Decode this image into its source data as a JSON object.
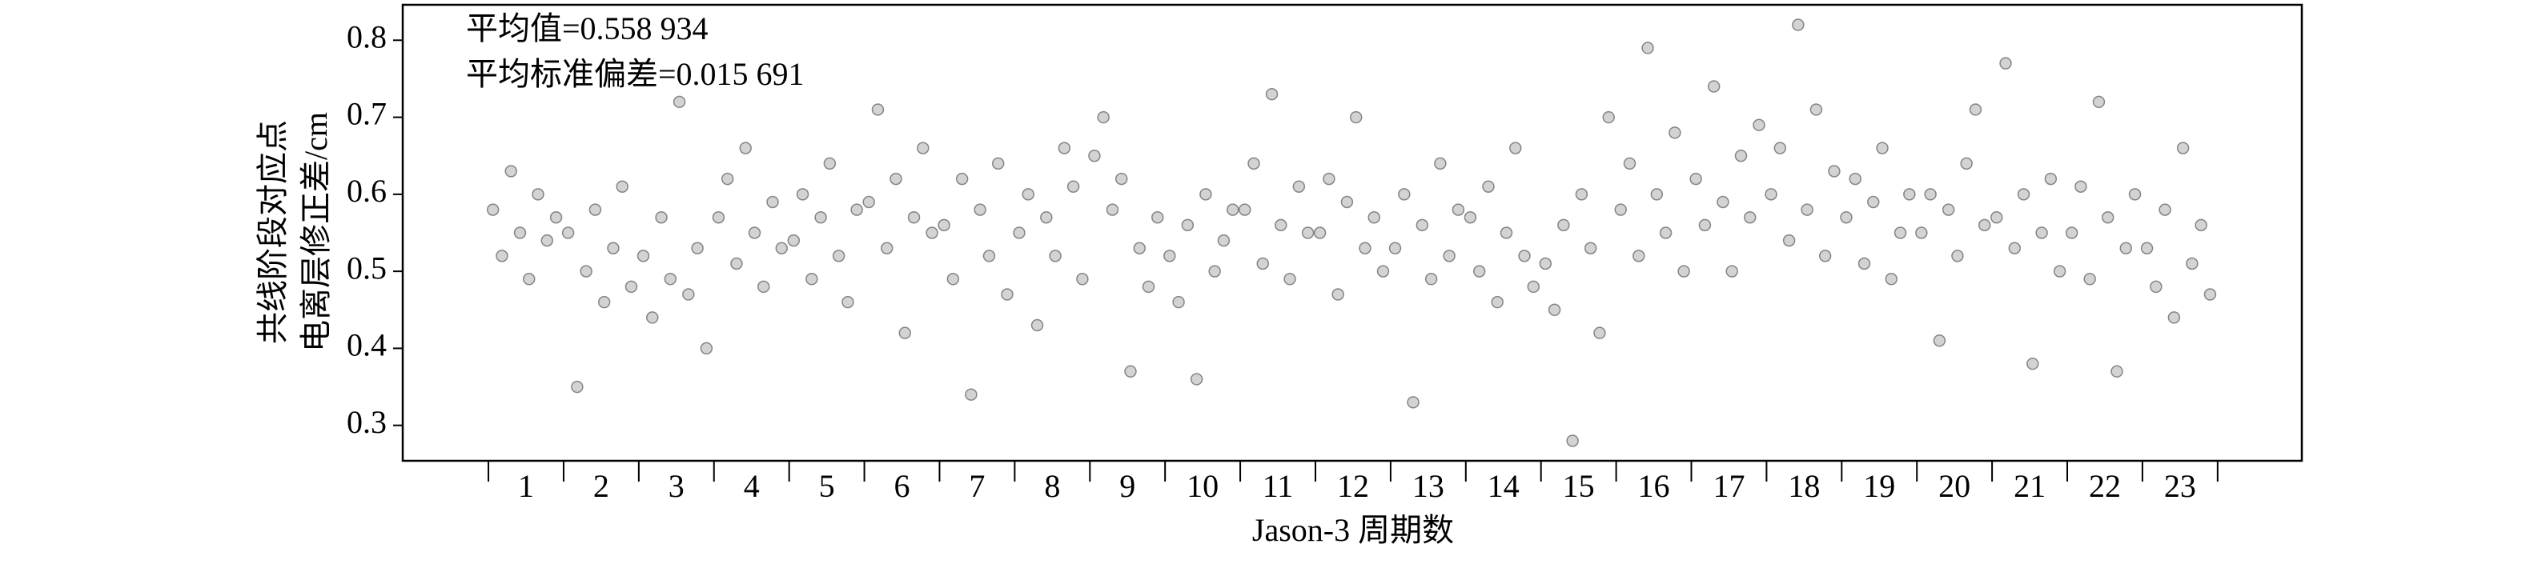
{
  "chart_data": {
    "type": "scatter",
    "annotations": [
      "平均值=0.558 934",
      "平均标准偏差=0.015 691"
    ],
    "ylabel": [
      "共线阶段对应点",
      "电离层修正差/cm"
    ],
    "xlabel": "Jason-3 周期数",
    "color": "#808080",
    "xlim": [
      -1.14,
      24.12
    ],
    "ylim": [
      0.254,
      0.846
    ],
    "yticks": [
      0.3,
      0.4,
      0.5,
      0.6,
      0.7,
      0.8
    ],
    "x_tick_marks": [
      0,
      1,
      2,
      3,
      4,
      5,
      6,
      7,
      8,
      9,
      10,
      11,
      12,
      13,
      14,
      15,
      16,
      17,
      18,
      19,
      20,
      21,
      22,
      23
    ],
    "xticks": [
      {
        "value": 0.5,
        "label": "1"
      },
      {
        "value": 1.5,
        "label": "2"
      },
      {
        "value": 2.5,
        "label": "3"
      },
      {
        "value": 3.5,
        "label": "4"
      },
      {
        "value": 4.5,
        "label": "5"
      },
      {
        "value": 5.5,
        "label": "6"
      },
      {
        "value": 6.5,
        "label": "7"
      },
      {
        "value": 7.5,
        "label": "8"
      },
      {
        "value": 8.5,
        "label": "9"
      },
      {
        "value": 9.5,
        "label": "10"
      },
      {
        "value": 10.5,
        "label": "11"
      },
      {
        "value": 11.5,
        "label": "12"
      },
      {
        "value": 12.5,
        "label": "13"
      },
      {
        "value": 13.5,
        "label": "14"
      },
      {
        "value": 14.5,
        "label": "15"
      },
      {
        "value": 15.5,
        "label": "16"
      },
      {
        "value": 16.5,
        "label": "17"
      },
      {
        "value": 17.5,
        "label": "18"
      },
      {
        "value": 18.5,
        "label": "19"
      },
      {
        "value": 19.5,
        "label": "20"
      },
      {
        "value": 20.5,
        "label": "21"
      },
      {
        "value": 21.5,
        "label": "22"
      },
      {
        "value": 22.5,
        "label": "23"
      }
    ],
    "x": [
      0.06,
      0.18,
      0.3,
      0.42,
      0.54,
      0.66,
      0.78,
      0.9,
      1.06,
      1.18,
      1.3,
      1.42,
      1.54,
      1.66,
      1.78,
      1.9,
      2.06,
      2.18,
      2.3,
      2.42,
      2.54,
      2.66,
      2.78,
      2.9,
      3.06,
      3.18,
      3.3,
      3.42,
      3.54,
      3.66,
      3.78,
      3.9,
      4.06,
      4.18,
      4.3,
      4.42,
      4.54,
      4.66,
      4.78,
      4.9,
      5.06,
      5.18,
      5.3,
      5.42,
      5.54,
      5.66,
      5.78,
      5.9,
      6.06,
      6.18,
      6.3,
      6.42,
      6.54,
      6.66,
      6.78,
      6.9,
      7.06,
      7.18,
      7.3,
      7.42,
      7.54,
      7.66,
      7.78,
      7.9,
      8.06,
      8.18,
      8.3,
      8.42,
      8.54,
      8.66,
      8.78,
      8.9,
      9.06,
      9.18,
      9.3,
      9.42,
      9.54,
      9.66,
      9.78,
      9.9,
      10.06,
      10.18,
      10.3,
      10.42,
      10.54,
      10.66,
      10.78,
      10.9,
      11.06,
      11.18,
      11.3,
      11.42,
      11.54,
      11.66,
      11.78,
      11.9,
      12.06,
      12.18,
      12.3,
      12.42,
      12.54,
      12.66,
      12.78,
      12.9,
      13.06,
      13.18,
      13.3,
      13.42,
      13.54,
      13.66,
      13.78,
      13.9,
      14.06,
      14.18,
      14.3,
      14.42,
      14.54,
      14.66,
      14.78,
      14.9,
      15.06,
      15.18,
      15.3,
      15.42,
      15.54,
      15.66,
      15.78,
      15.9,
      16.06,
      16.18,
      16.3,
      16.42,
      16.54,
      16.66,
      16.78,
      16.9,
      17.06,
      17.18,
      17.3,
      17.42,
      17.54,
      17.66,
      17.78,
      17.9,
      18.06,
      18.18,
      18.3,
      18.42,
      18.54,
      18.66,
      18.78,
      18.9,
      19.06,
      19.18,
      19.3,
      19.42,
      19.54,
      19.66,
      19.78,
      19.9,
      20.06,
      20.18,
      20.3,
      20.42,
      20.54,
      20.66,
      20.78,
      20.9,
      21.06,
      21.18,
      21.3,
      21.42,
      21.54,
      21.66,
      21.78,
      21.9,
      22.06,
      22.18,
      22.3,
      22.42,
      22.54,
      22.66,
      22.78,
      22.9
    ],
    "values": [
      0.58,
      0.52,
      0.63,
      0.55,
      0.49,
      0.6,
      0.54,
      0.57,
      0.55,
      0.35,
      0.5,
      0.58,
      0.46,
      0.53,
      0.61,
      0.48,
      0.52,
      0.44,
      0.57,
      0.49,
      0.72,
      0.47,
      0.53,
      0.4,
      0.57,
      0.62,
      0.51,
      0.66,
      0.55,
      0.48,
      0.59,
      0.53,
      0.54,
      0.6,
      0.49,
      0.57,
      0.64,
      0.52,
      0.46,
      0.58,
      0.59,
      0.71,
      0.53,
      0.62,
      0.42,
      0.57,
      0.66,
      0.55,
      0.56,
      0.49,
      0.62,
      0.34,
      0.58,
      0.52,
      0.64,
      0.47,
      0.55,
      0.6,
      0.43,
      0.57,
      0.52,
      0.66,
      0.61,
      0.49,
      0.65,
      0.7,
      0.58,
      0.62,
      0.37,
      0.53,
      0.48,
      0.57,
      0.52,
      0.46,
      0.56,
      0.36,
      0.6,
      0.5,
      0.54,
      0.58,
      0.58,
      0.64,
      0.51,
      0.73,
      0.56,
      0.49,
      0.61,
      0.55,
      0.55,
      0.62,
      0.47,
      0.59,
      0.7,
      0.53,
      0.57,
      0.5,
      0.53,
      0.6,
      0.33,
      0.56,
      0.49,
      0.64,
      0.52,
      0.58,
      0.57,
      0.5,
      0.61,
      0.46,
      0.55,
      0.66,
      0.52,
      0.48,
      0.51,
      0.45,
      0.56,
      0.28,
      0.6,
      0.53,
      0.42,
      0.7,
      0.58,
      0.64,
      0.52,
      0.79,
      0.6,
      0.55,
      0.68,
      0.5,
      0.62,
      0.56,
      0.74,
      0.59,
      0.5,
      0.65,
      0.57,
      0.69,
      0.6,
      0.66,
      0.54,
      0.82,
      0.58,
      0.71,
      0.52,
      0.63,
      0.57,
      0.62,
      0.51,
      0.59,
      0.66,
      0.49,
      0.55,
      0.6,
      0.55,
      0.6,
      0.41,
      0.58,
      0.52,
      0.64,
      0.71,
      0.56,
      0.57,
      0.77,
      0.53,
      0.6,
      0.38,
      0.55,
      0.62,
      0.5,
      0.55,
      0.61,
      0.49,
      0.72,
      0.57,
      0.37,
      0.53,
      0.6,
      0.53,
      0.48,
      0.58,
      0.44,
      0.66,
      0.51,
      0.56,
      0.47
    ]
  }
}
